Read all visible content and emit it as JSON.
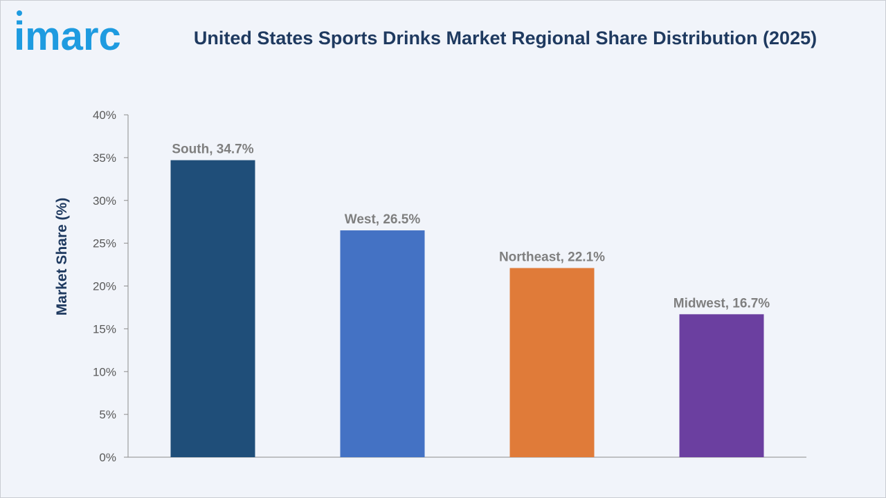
{
  "brand": {
    "logo_text": "imarc",
    "logo_color": "#1e9be0"
  },
  "chart_data": {
    "type": "bar",
    "title": "United States Sports Drinks Market Regional Share Distribution (2025)",
    "xlabel": "",
    "ylabel": "Market Share (%)",
    "categories": [
      "South",
      "West",
      "Northeast",
      "Midwest"
    ],
    "values": [
      34.7,
      26.5,
      22.1,
      16.7
    ],
    "data_labels": [
      "South, 34.7%",
      "West, 26.5%",
      "Northeast, 22.1%",
      "Midwest, 16.7%"
    ],
    "colors": [
      "#1f4e79",
      "#4472c4",
      "#e07b39",
      "#6b3fa0"
    ],
    "ylim": [
      0,
      40
    ],
    "yticks": [
      0,
      5,
      10,
      15,
      20,
      25,
      30,
      35,
      40
    ],
    "ytick_labels": [
      "0%",
      "5%",
      "10%",
      "15%",
      "20%",
      "25%",
      "30%",
      "35%",
      "40%"
    ],
    "grid": false,
    "legend": "none"
  }
}
